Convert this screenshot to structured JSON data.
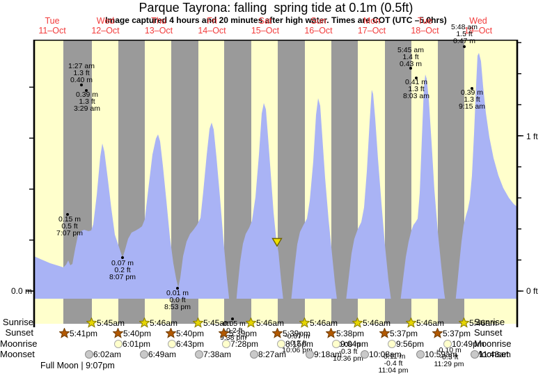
{
  "title": "Parque Tayrona: falling  spring tide at 0.1m (0.5ft)",
  "subtitle": "Image captured 4 hours and 20 minutes after high water. Times are COT (UTC –5.0hrs)",
  "colors": {
    "day_band": "#ffffcc",
    "night_band": "#9a9a9a",
    "tide_fill": "#a9b3f5",
    "day_label_red": "#f23b3b",
    "marker_yellow": "#f0e000",
    "sunrise_star": "#e6d500",
    "sunset_star": "#b35900",
    "moonrise_circle": "#ffffcc",
    "moonset_circle": "#c9c9c9"
  },
  "day_labels": [
    {
      "day": "Tue",
      "date": "11–Oct"
    },
    {
      "day": "Wed",
      "date": "12–Oct"
    },
    {
      "day": "Thu",
      "date": "13–Oct"
    },
    {
      "day": "Fri",
      "date": "14–Oct"
    },
    {
      "day": "Sat",
      "date": "15–Oct"
    },
    {
      "day": "Sun",
      "date": "16–Oct"
    },
    {
      "day": "Mon",
      "date": "17–Oct"
    },
    {
      "day": "Tue",
      "date": "18–Oct"
    },
    {
      "day": "Wed",
      "date": "19–Oct"
    }
  ],
  "y_axis": {
    "left_zero": "0.0 m",
    "right_one_ft": "1 ft",
    "right_zero_ft": "0 ft"
  },
  "annotations": [
    {
      "lines": [
        "1:27 am",
        "1.3 ft",
        "0.40 m"
      ]
    },
    {
      "lines": [
        "0.39 m",
        "1.3 ft",
        "3:29 am"
      ]
    },
    {
      "lines": [
        "0.15 m",
        "0.5 ft",
        "7:07 pm"
      ]
    },
    {
      "lines": [
        "0.07 m",
        "0.2 ft",
        "8:07 pm"
      ]
    },
    {
      "lines": [
        "0.01 m",
        "0.0 ft",
        "8:53 pm"
      ]
    },
    {
      "lines": [
        "-0.05 m",
        "-0.2 ft",
        "9:38 pm"
      ]
    },
    {
      "lines": [
        "-0.07 m",
        "-0.2 ft",
        "10:06 pm"
      ]
    },
    {
      "lines": [
        "-0.08 m",
        "-0.3 ft",
        "10:36 pm"
      ]
    },
    {
      "lines": [
        "-0.11 m",
        "-0.4 ft",
        "11:04 pm"
      ]
    },
    {
      "lines": [
        "-0.10 m",
        "-0.3 ft",
        "11:29 pm"
      ]
    },
    {
      "lines": [
        "5:45 am",
        "1.4 ft",
        "0.43 m"
      ]
    },
    {
      "lines": [
        "0.41 m",
        "1.3 ft",
        "8:03 am"
      ]
    },
    {
      "lines": [
        "5:48 am",
        "1.5 ft",
        "0.47 m"
      ]
    },
    {
      "lines": [
        "0.39 m",
        "1.3 ft",
        "9:15 am"
      ]
    }
  ],
  "row_labels": {
    "sunrise": "Sunrise",
    "sunset": "Sunset",
    "moonrise": "Moonrise",
    "moonset": "Moonset"
  },
  "sun_moon": {
    "sunrise": [
      "5:45am",
      "5:46am",
      "5:45am",
      "5:46am",
      "5:46am",
      "5:46am",
      "5:46am",
      "5:46am"
    ],
    "sunset": [
      "5:41pm",
      "5:40pm",
      "5:40pm",
      "5:39pm",
      "5:39pm",
      "5:38pm",
      "5:37pm",
      "5:37pm"
    ],
    "moonrise": [
      "6:01pm",
      "6:43pm",
      "7:28pm",
      "8:15pm",
      "9:04pm",
      "9:56pm",
      "10:49pm"
    ],
    "moonset": [
      "6:02am",
      "6:49am",
      "7:38am",
      "8:27am",
      "9:18am",
      "10:08am",
      "10:59am",
      "11:48am"
    ]
  },
  "footer": "Full Moon | 9:07pm",
  "chart_data": {
    "type": "area",
    "title": "Parque Tayrona: falling  spring tide at 0.1m (0.5ft)",
    "subtitle": "Image captured 4 hours and 20 minutes after high water. Times are COT (UTC –5.0hrs)",
    "x_days": [
      "Tue 11-Oct",
      "Wed 12-Oct",
      "Thu 13-Oct",
      "Fri 14-Oct",
      "Sat 15-Oct",
      "Sun 16-Oct",
      "Mon 17-Oct",
      "Tue 18-Oct",
      "Wed 19-Oct"
    ],
    "y_axis_left_label": "0.0 m",
    "y_axis_right_labels": [
      "1 ft",
      "0 ft"
    ],
    "legend_position": "none",
    "grid": false,
    "current_level": {
      "state": "falling",
      "height_m": 0.1,
      "height_ft": 0.5
    },
    "tide_extremes": [
      {
        "day": "Wed 12-Oct",
        "type": "high",
        "time": "1:27 am",
        "height_m": 0.4,
        "height_ft": 1.3
      },
      {
        "day": "Wed 12-Oct",
        "type": "high",
        "time": "3:29 am",
        "height_m": 0.39,
        "height_ft": 1.3
      },
      {
        "day": "Tue 11-Oct",
        "type": "low",
        "time": "7:07 pm",
        "height_m": 0.15,
        "height_ft": 0.5
      },
      {
        "day": "Wed 12-Oct",
        "type": "low",
        "time": "8:07 pm",
        "height_m": 0.07,
        "height_ft": 0.2
      },
      {
        "day": "Thu 13-Oct",
        "type": "low",
        "time": "8:53 pm",
        "height_m": 0.01,
        "height_ft": 0.0
      },
      {
        "day": "Fri 14-Oct",
        "type": "low",
        "time": "9:38 pm",
        "height_m": -0.05,
        "height_ft": -0.2
      },
      {
        "day": "Sat 15-Oct",
        "type": "low",
        "time": "10:06 pm",
        "height_m": -0.07,
        "height_ft": -0.2
      },
      {
        "day": "Sun 16-Oct",
        "type": "low",
        "time": "10:36 pm",
        "height_m": -0.08,
        "height_ft": -0.3
      },
      {
        "day": "Mon 17-Oct",
        "type": "low",
        "time": "11:04 pm",
        "height_m": -0.11,
        "height_ft": -0.4
      },
      {
        "day": "Tue 18-Oct",
        "type": "low",
        "time": "11:29 pm",
        "height_m": -0.1,
        "height_ft": -0.3
      },
      {
        "day": "Tue 18-Oct",
        "type": "high",
        "time": "5:45 am",
        "height_m": 0.43,
        "height_ft": 1.4
      },
      {
        "day": "Tue 18-Oct",
        "type": "high",
        "time": "8:03 am",
        "height_m": 0.41,
        "height_ft": 1.3
      },
      {
        "day": "Wed 19-Oct",
        "type": "high",
        "time": "5:48 am",
        "height_m": 0.47,
        "height_ft": 1.5
      },
      {
        "day": "Wed 19-Oct",
        "type": "high",
        "time": "9:15 am",
        "height_m": 0.39,
        "height_ft": 1.3
      }
    ],
    "sun_moon_events": {
      "sunrise": [
        "5:45am",
        "5:46am",
        "5:45am",
        "5:46am",
        "5:46am",
        "5:46am",
        "5:46am",
        "5:46am"
      ],
      "sunset": [
        "5:41pm",
        "5:40pm",
        "5:40pm",
        "5:39pm",
        "5:39pm",
        "5:38pm",
        "5:37pm",
        "5:37pm"
      ],
      "moonrise": [
        "6:01pm",
        "6:43pm",
        "7:28pm",
        "8:15pm",
        "9:04pm",
        "9:56pm",
        "10:49pm"
      ],
      "moonset": [
        "6:02am",
        "6:49am",
        "7:38am",
        "8:27am",
        "9:18am",
        "10:08am",
        "10:59am",
        "11:48am"
      ],
      "moon_phase_note": "Full Moon | 9:07pm"
    }
  }
}
